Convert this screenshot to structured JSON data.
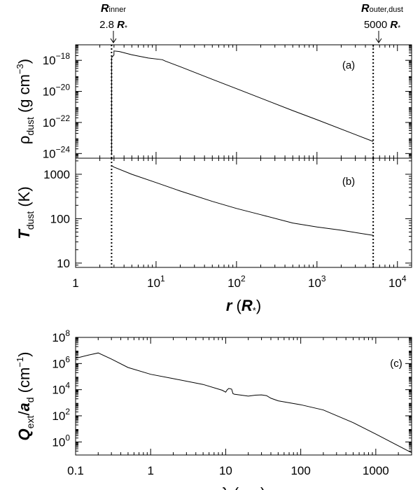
{
  "chart_data": [
    {
      "panel": "(a)",
      "type": "line",
      "x_scale": "log",
      "y_scale": "log",
      "xlim": [
        1,
        15000
      ],
      "ylim": [
        5e-25,
        1e-17
      ],
      "y_ticks": [
        {
          "v": 1e-18,
          "m": "10",
          "e": "−18"
        },
        {
          "v": 1e-20,
          "m": "10",
          "e": "−20"
        },
        {
          "v": 1e-22,
          "m": "10",
          "e": "−22"
        },
        {
          "v": 1e-24,
          "m": "10",
          "e": "−24"
        }
      ],
      "ylabel": {
        "sym": "ρ",
        "sub": "dust",
        "unit": " (g cm",
        "sup": "−3",
        "close": ")"
      },
      "series": [
        {
          "x": [
            2.8,
            2.8,
            3.0,
            3.0,
            3.5,
            5,
            8,
            12,
            13,
            20,
            50,
            100,
            500,
            1000,
            5000
          ],
          "y": [
            8e-25,
            1.5e-18,
            2.2e-18,
            4e-18,
            3.7e-18,
            2.3e-18,
            1.4e-18,
            1.1e-18,
            9e-19,
            3.9e-19,
            6e-20,
            1.5e-20,
            5.8e-22,
            1.5e-22,
            6e-24
          ]
        }
      ],
      "markers": [
        {
          "x": 2.8
        },
        {
          "x": 5000
        }
      ]
    },
    {
      "panel": "(b)",
      "type": "line",
      "x_scale": "log",
      "y_scale": "log",
      "xlim": [
        1,
        15000
      ],
      "ylim": [
        8,
        2300
      ],
      "y_ticks": [
        {
          "v": 10,
          "m": "10",
          "e": ""
        },
        {
          "v": 100,
          "m": "100",
          "e": ""
        },
        {
          "v": 1000,
          "m": "1000",
          "e": ""
        }
      ],
      "x_ticks": [
        {
          "v": 1,
          "m": "1",
          "e": ""
        },
        {
          "v": 10,
          "m": "10",
          "e": "1"
        },
        {
          "v": 100,
          "m": "10",
          "e": "2"
        },
        {
          "v": 1000,
          "m": "10",
          "e": "3"
        },
        {
          "v": 10000,
          "m": "10",
          "e": "4"
        }
      ],
      "ylabel": {
        "sym": "T",
        "sub": "dust",
        "unit": " (K)",
        "sup": "",
        "close": ""
      },
      "xlabel": {
        "sym": "r",
        "unit": " (R",
        "sub": "*",
        "close": ")"
      },
      "series": [
        {
          "x": [
            2.8,
            3,
            5,
            10,
            20,
            50,
            100,
            200,
            500,
            1000,
            2000,
            5000
          ],
          "y": [
            1570,
            1450,
            1000,
            650,
            420,
            245,
            170,
            123,
            80,
            65,
            55,
            42
          ]
        }
      ],
      "markers": [
        {
          "x": 2.8
        },
        {
          "x": 5000
        }
      ]
    },
    {
      "panel": "(c)",
      "type": "line",
      "x_scale": "log",
      "y_scale": "log",
      "xlim": [
        0.1,
        3000
      ],
      "ylim": [
        0.1,
        100000000.0
      ],
      "y_ticks": [
        {
          "v": 1,
          "m": "10",
          "e": "0"
        },
        {
          "v": 100,
          "m": "10",
          "e": "2"
        },
        {
          "v": 10000,
          "m": "10",
          "e": "4"
        },
        {
          "v": 1000000,
          "m": "10",
          "e": "6"
        },
        {
          "v": 100000000,
          "m": "10",
          "e": "8"
        }
      ],
      "x_ticks": [
        {
          "v": 0.1,
          "m": "0.1",
          "e": ""
        },
        {
          "v": 1,
          "m": "1",
          "e": ""
        },
        {
          "v": 10,
          "m": "10",
          "e": ""
        },
        {
          "v": 100,
          "m": "100",
          "e": ""
        },
        {
          "v": 1000,
          "m": "1000",
          "e": ""
        }
      ],
      "ylabel": {
        "sym": "Q",
        "sub": "ext",
        "mid": "/",
        "sym2": "a",
        "sub2": "d",
        "unit": " (cm",
        "sup": "−1",
        "close": ")"
      },
      "xlabel": {
        "sym": "λ",
        "unit": " (μm)",
        "sub": "",
        "close": ""
      },
      "series": [
        {
          "x": [
            0.1,
            0.15,
            0.2,
            0.3,
            0.5,
            1,
            2,
            5,
            9,
            10,
            10.5,
            11,
            12,
            12.5,
            13,
            20,
            25,
            30,
            35,
            40,
            50,
            100,
            200,
            500,
            1000,
            3000
          ],
          "y": [
            2500000.0,
            4500000.0,
            6500000.0,
            2200000.0,
            500000.0,
            150000.0,
            70000.0,
            25000.0,
            9000.0,
            6500.0,
            10000.0,
            12500.0,
            11000.0,
            5000.0,
            4500.0,
            3200.0,
            3800.0,
            4000.0,
            3500.0,
            2200.0,
            1400.0,
            700.0,
            280.0,
            30,
            4,
            0.15
          ]
        }
      ],
      "markers": []
    }
  ],
  "annotations": {
    "inner": {
      "sym": "R",
      "sub": "inner",
      "value": "2.8 ",
      "unit": "R",
      "usub": "*"
    },
    "outer": {
      "sym": "R",
      "sub": "outer,dust",
      "value": "5000 ",
      "unit": "R",
      "usub": "*"
    }
  }
}
